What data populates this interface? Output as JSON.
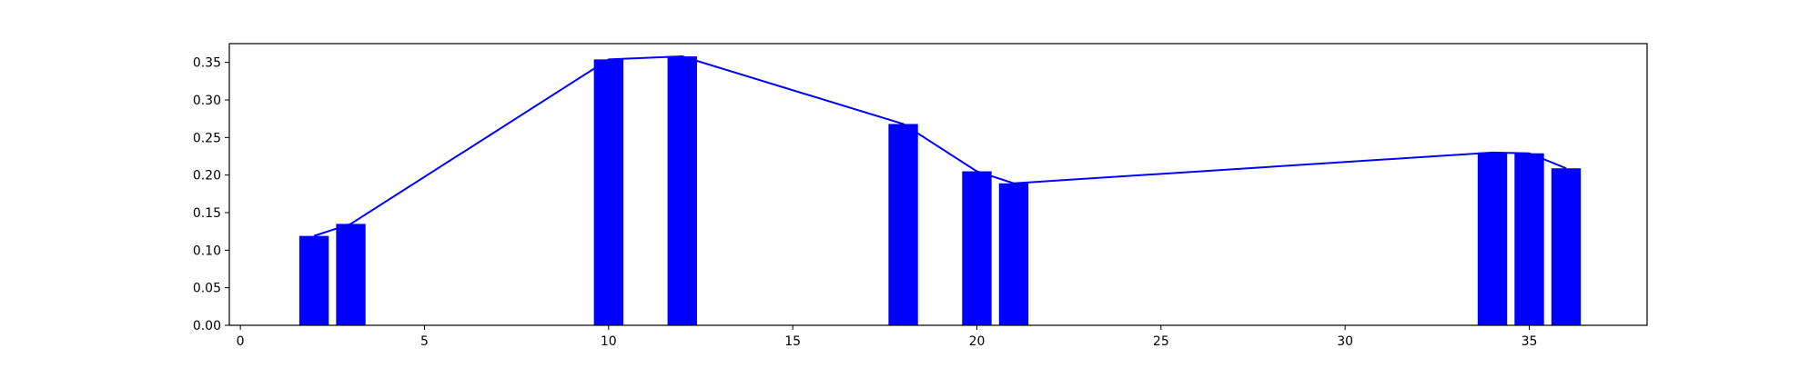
{
  "chart_data": {
    "type": "bar",
    "title": "",
    "xlabel": "",
    "ylabel": "",
    "xlim": [
      -0.3,
      38.2
    ],
    "ylim": [
      0,
      0.375
    ],
    "x_ticks": [
      0,
      5,
      10,
      15,
      20,
      25,
      30,
      35
    ],
    "x_tick_labels": [
      "0",
      "5",
      "10",
      "15",
      "20",
      "25",
      "30",
      "35"
    ],
    "y_ticks": [
      0.0,
      0.05,
      0.1,
      0.15,
      0.2,
      0.25,
      0.3,
      0.35
    ],
    "y_tick_labels": [
      "0.00",
      "0.05",
      "0.10",
      "0.15",
      "0.20",
      "0.25",
      "0.30",
      "0.35"
    ],
    "grid": false,
    "bar_width": 0.8,
    "series": [
      {
        "kind": "bar",
        "color": "#0000ff",
        "x": [
          2,
          3,
          10,
          12,
          18,
          20,
          21,
          34,
          35,
          36
        ],
        "values": [
          0.119,
          0.135,
          0.354,
          0.358,
          0.268,
          0.205,
          0.189,
          0.23,
          0.229,
          0.209
        ]
      },
      {
        "kind": "line",
        "color": "#0000ff",
        "x": [
          2,
          3,
          10,
          12,
          18,
          20,
          21,
          34,
          35,
          36
        ],
        "values": [
          0.119,
          0.135,
          0.354,
          0.358,
          0.268,
          0.205,
          0.189,
          0.23,
          0.229,
          0.209
        ]
      }
    ]
  }
}
